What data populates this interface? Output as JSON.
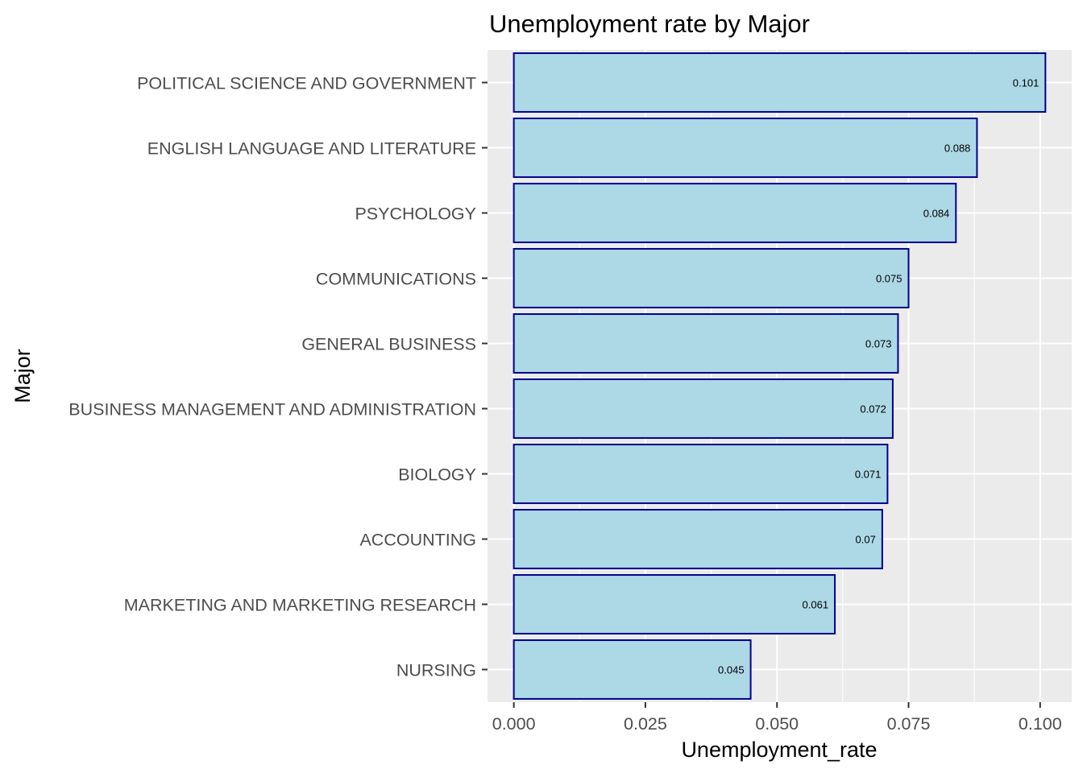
{
  "chart_data": {
    "type": "bar",
    "orientation": "horizontal",
    "title": "Unemployment rate by Major",
    "xlabel": "Unemployment_rate",
    "ylabel": "Major",
    "categories": [
      "POLITICAL SCIENCE AND GOVERNMENT",
      "ENGLISH LANGUAGE AND LITERATURE",
      "PSYCHOLOGY",
      "COMMUNICATIONS",
      "GENERAL BUSINESS",
      "BUSINESS MANAGEMENT AND ADMINISTRATION",
      "BIOLOGY",
      "ACCOUNTING",
      "MARKETING AND MARKETING RESEARCH",
      "NURSING"
    ],
    "values": [
      0.101,
      0.088,
      0.084,
      0.075,
      0.073,
      0.072,
      0.071,
      0.07,
      0.061,
      0.045
    ],
    "data_labels": [
      "0.101",
      "0.088",
      "0.084",
      "0.075",
      "0.073",
      "0.072",
      "0.071",
      "0.07",
      "0.061",
      "0.045"
    ],
    "x_ticks": [
      0,
      0.025,
      0.05,
      0.075,
      0.1
    ],
    "x_tick_labels": [
      "0.000",
      "0.025",
      "0.050",
      "0.075",
      "0.100"
    ],
    "xlim": [
      -0.005,
      0.106
    ],
    "grid": true,
    "colors": {
      "panel_background": "#ebebeb",
      "grid_line": "#ffffff",
      "bar_fill": "#add8e6",
      "bar_outline": "#00008b",
      "axis_text": "#4d4d4d",
      "text": "#000000"
    }
  }
}
